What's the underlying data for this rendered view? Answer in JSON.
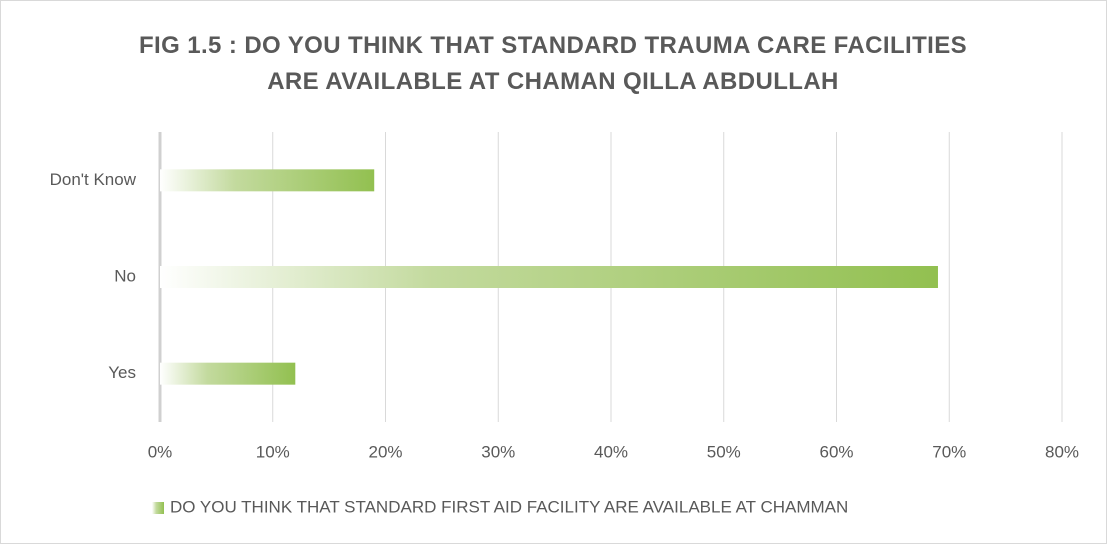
{
  "chart_data": {
    "type": "hbar",
    "title": "FIG 1.5 : DO YOU THINK THAT STANDARD TRAUMA CARE FACILITIES ARE AVAILABLE AT CHAMAN QILLA ABDULLAH",
    "categories": [
      "Don't Know",
      "No",
      "Yes"
    ],
    "series": [
      {
        "name": "DO YOU THINK THAT STANDARD FIRST AID FACILITY ARE AVAILABLE AT CHAMMAN",
        "color": "#92c050",
        "values": [
          19,
          69,
          12
        ]
      }
    ],
    "xlim": [
      0,
      80
    ],
    "xticks": [
      {
        "value": 0,
        "label": "0%"
      },
      {
        "value": 10,
        "label": "10%"
      },
      {
        "value": 20,
        "label": "20%"
      },
      {
        "value": 30,
        "label": "30%"
      },
      {
        "value": 40,
        "label": "40%"
      },
      {
        "value": 50,
        "label": "50%"
      },
      {
        "value": 60,
        "label": "60%"
      },
      {
        "value": 70,
        "label": "70%"
      },
      {
        "value": 80,
        "label": "80%"
      }
    ],
    "grid": true,
    "legend": "bottom"
  }
}
